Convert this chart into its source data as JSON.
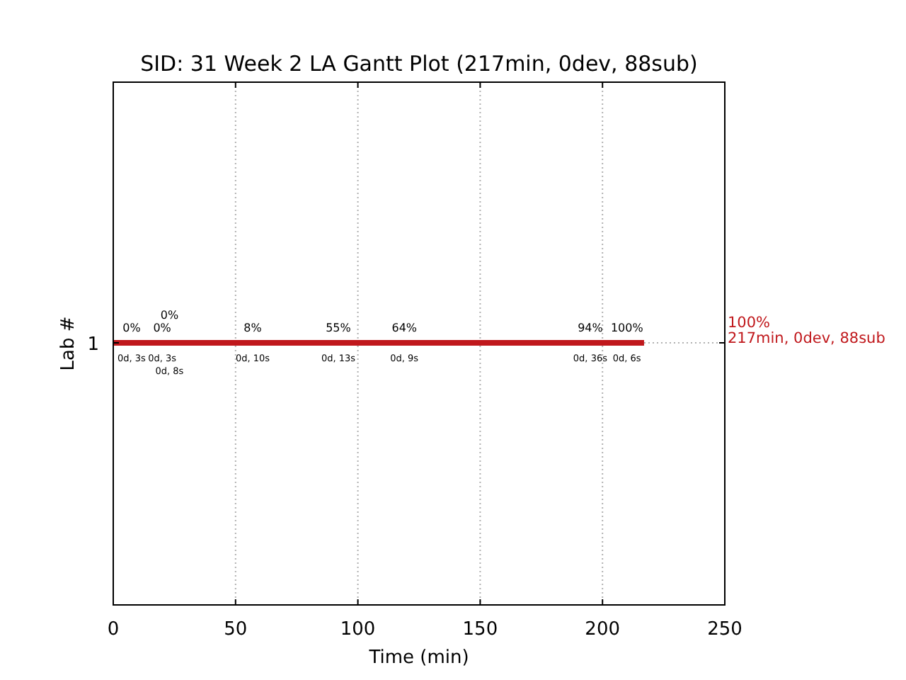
{
  "chart_data": {
    "type": "bar",
    "orientation": "horizontal",
    "title": "SID: 31 Week 2 LA Gantt Plot (217min, 0dev, 88sub)",
    "xlabel": "Time (min)",
    "ylabel": "Lab #",
    "categories": [
      "1"
    ],
    "series": [
      {
        "color": "#c0181c",
        "values": [
          217
        ],
        "value_labels": [
          "100%\n217min, 0dev, 88sub"
        ]
      }
    ],
    "xlim": [
      0,
      250
    ],
    "xticks": [
      0,
      50,
      100,
      150,
      200,
      250
    ],
    "grid": "x",
    "annotations": [
      {
        "text": "0%",
        "x": 0,
        "y": "1"
      },
      {
        "text": "0d, 3s",
        "x": 0,
        "y": "1"
      },
      {
        "text": "0%",
        "x": 20,
        "y": "1"
      },
      {
        "text": "0d, 3s",
        "x": 20,
        "y": "1"
      },
      {
        "text": "0%",
        "x": 23,
        "y": "1"
      },
      {
        "text": "0d, 8s",
        "x": 23,
        "y": "1"
      },
      {
        "text": "8%",
        "x": 57,
        "y": "1"
      },
      {
        "text": "0d, 10s",
        "x": 57,
        "y": "1"
      },
      {
        "text": "55%",
        "x": 92,
        "y": "1"
      },
      {
        "text": "0d, 13s",
        "x": 92,
        "y": "1"
      },
      {
        "text": "64%",
        "x": 119,
        "y": "1"
      },
      {
        "text": "0d, 9s",
        "x": 119,
        "y": "1"
      },
      {
        "text": "94%",
        "x": 195,
        "y": "1"
      },
      {
        "text": "0d, 36s",
        "x": 195,
        "y": "1"
      },
      {
        "text": "100%",
        "x": 210,
        "y": "1"
      },
      {
        "text": "0d, 6s",
        "x": 210,
        "y": "1"
      }
    ]
  }
}
